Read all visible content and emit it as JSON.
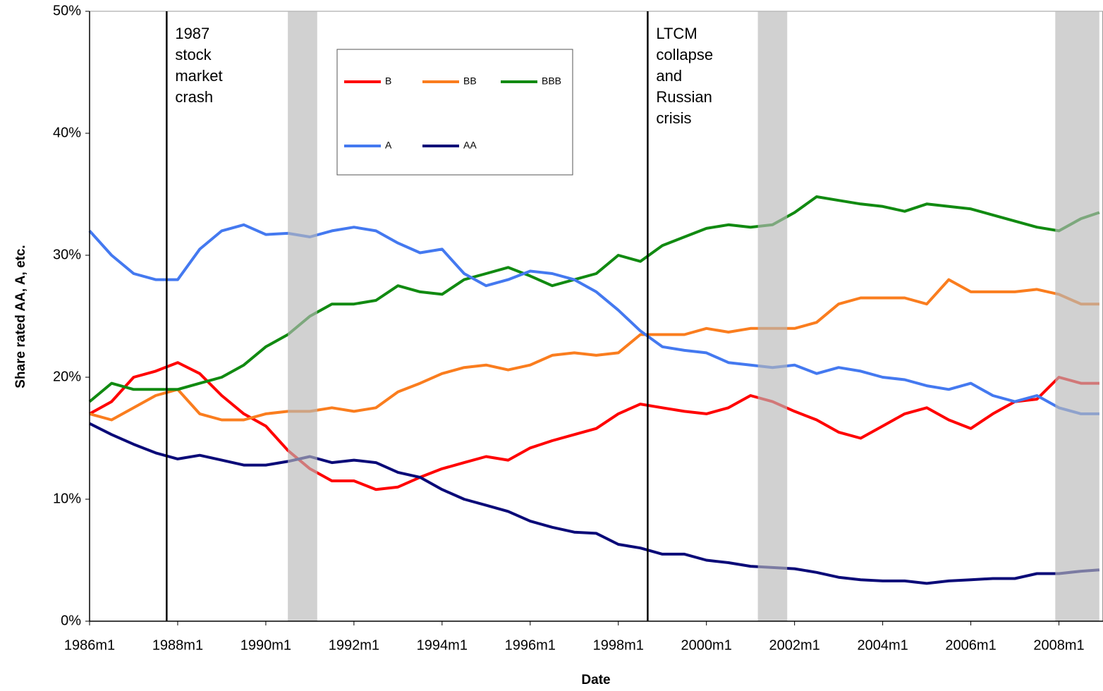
{
  "chart_data": {
    "type": "line",
    "x_label": "Date",
    "y_label": "Share rated AA, A, etc.",
    "x": [
      "1986m1",
      "1986m7",
      "1987m1",
      "1987m7",
      "1988m1",
      "1988m7",
      "1989m1",
      "1989m7",
      "1990m1",
      "1990m7",
      "1991m1",
      "1991m7",
      "1992m1",
      "1992m7",
      "1993m1",
      "1993m7",
      "1994m1",
      "1994m7",
      "1995m1",
      "1995m7",
      "1996m1",
      "1996m7",
      "1997m1",
      "1997m7",
      "1998m1",
      "1998m7",
      "1999m1",
      "1999m7",
      "2000m1",
      "2000m7",
      "2001m1",
      "2001m7",
      "2002m1",
      "2002m7",
      "2003m1",
      "2003m7",
      "2004m1",
      "2004m7",
      "2005m1",
      "2005m7",
      "2006m1",
      "2006m7",
      "2007m1",
      "2007m7",
      "2008m1",
      "2008m7",
      "2008m12"
    ],
    "series": [
      {
        "name": "B",
        "color": "#ff0000",
        "values": [
          17,
          18,
          20,
          20.5,
          21.2,
          20.3,
          18.5,
          17,
          16,
          14,
          12.5,
          11.5,
          11.5,
          10.8,
          11,
          11.8,
          12.5,
          13,
          13.5,
          13.2,
          14.2,
          14.8,
          15.3,
          15.8,
          17,
          17.8,
          17.5,
          17.2,
          17,
          17.5,
          18.5,
          18,
          17.2,
          16.5,
          15.5,
          15,
          16,
          17,
          17.5,
          16.5,
          15.8,
          17,
          18,
          18.2,
          20,
          19.5,
          19.5
        ]
      },
      {
        "name": "BB",
        "color": "#fa7d1e",
        "values": [
          17,
          16.5,
          17.5,
          18.5,
          19,
          17,
          16.5,
          16.5,
          17,
          17.2,
          17.2,
          17.5,
          17.2,
          17.5,
          18.8,
          19.5,
          20.3,
          20.8,
          21,
          20.6,
          21,
          21.8,
          22,
          21.8,
          22,
          23.5,
          23.5,
          23.5,
          24,
          23.7,
          24,
          24,
          24,
          24.5,
          26,
          26.5,
          26.5,
          26.5,
          26,
          28,
          27,
          27,
          27,
          27.2,
          26.8,
          26,
          26
        ]
      },
      {
        "name": "BBB",
        "color": "#118a11",
        "values": [
          18,
          19.5,
          19,
          19,
          19,
          19.5,
          20,
          21,
          22.5,
          23.5,
          25,
          26,
          26,
          26.3,
          27.5,
          27,
          26.8,
          28,
          28.5,
          29,
          28.3,
          27.5,
          28,
          28.5,
          30,
          29.5,
          30.8,
          31.5,
          32.2,
          32.5,
          32.3,
          32.5,
          33.5,
          34.8,
          34.5,
          34.2,
          34,
          33.6,
          34.2,
          34,
          33.8,
          33.3,
          32.8,
          32.3,
          32,
          33,
          33.5
        ]
      },
      {
        "name": "A",
        "color": "#4479f0",
        "values": [
          32,
          30,
          28.5,
          28,
          28,
          30.5,
          32,
          32.5,
          31.7,
          31.8,
          31.5,
          32,
          32.3,
          32,
          31,
          30.2,
          30.5,
          28.5,
          27.5,
          28,
          28.7,
          28.5,
          28,
          27,
          25.5,
          23.8,
          22.5,
          22.2,
          22,
          21.2,
          21,
          20.8,
          21,
          20.3,
          20.8,
          20.5,
          20,
          19.8,
          19.3,
          19,
          19.5,
          18.5,
          18,
          18.5,
          17.5,
          17,
          17
        ]
      },
      {
        "name": "AA",
        "color": "#0a0a78",
        "values": [
          16.2,
          15.3,
          14.5,
          13.8,
          13.3,
          13.6,
          13.2,
          12.8,
          12.8,
          13.1,
          13.5,
          13,
          13.2,
          13,
          12.2,
          11.8,
          10.8,
          10,
          9.5,
          9,
          8.2,
          7.7,
          7.3,
          7.2,
          6.3,
          6,
          5.5,
          5.5,
          5,
          4.8,
          4.5,
          4.4,
          4.3,
          4,
          3.6,
          3.4,
          3.3,
          3.3,
          3.1,
          3.3,
          3.4,
          3.5,
          3.5,
          3.9,
          3.9,
          4.1,
          4.2
        ]
      }
    ],
    "xlim": [
      "1986m1",
      "2008m12"
    ],
    "xticks": [
      "1986m1",
      "1988m1",
      "1990m1",
      "1992m1",
      "1994m1",
      "1996m1",
      "1998m1",
      "2000m1",
      "2002m1",
      "2004m1",
      "2006m1",
      "2008m1"
    ],
    "ylim": [
      0,
      50
    ],
    "yticks": [
      {
        "value": 0,
        "label": "0%"
      },
      {
        "value": 10,
        "label": "10%"
      },
      {
        "value": 20,
        "label": "20%"
      },
      {
        "value": 30,
        "label": "30%"
      },
      {
        "value": 40,
        "label": "40%"
      },
      {
        "value": 50,
        "label": "50%"
      }
    ],
    "shaded_periods": [
      [
        "1990m7",
        "1991m3"
      ],
      [
        "2001m3",
        "2001m11"
      ],
      [
        "2007m12",
        "2008m12"
      ]
    ],
    "annotations": [
      {
        "x": "1987m10",
        "text": "1987 stock market crash"
      },
      {
        "x": "1998m9",
        "text": "LTCM collapse and Russian crisis"
      }
    ],
    "legend": "upper-center"
  }
}
